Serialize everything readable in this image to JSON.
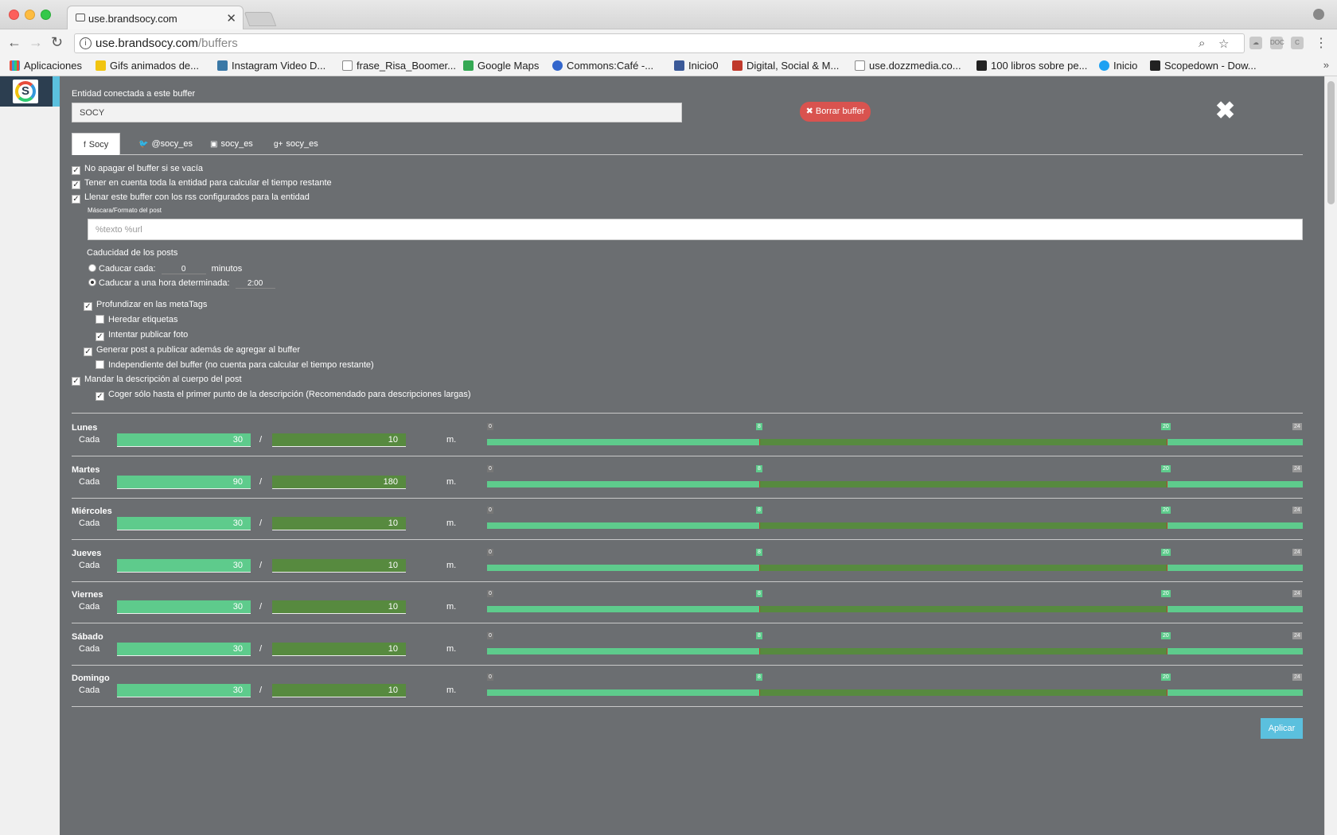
{
  "browser": {
    "tab_title": "use.brandsocy.com",
    "url_host": "use.brandsocy.com",
    "url_path": "/buffers",
    "bookmarks": [
      "Aplicaciones",
      "Gifs animados de...",
      "Instagram Video D...",
      "frase_Risa_Boomer...",
      "Google Maps",
      "Commons:Café -...",
      "Inicio0",
      "Digital, Social & M...",
      "use.dozzmedia.co...",
      "100 libros sobre pe...",
      "Inicio",
      "Scopedown - Dow..."
    ],
    "bookmarks_more": "»"
  },
  "panel": {
    "entity_label": "Entidad conectada a este buffer",
    "entity_value": "SOCY",
    "delete_button": "✖ Borrar buffer",
    "close_icon": "✖",
    "tabs": [
      {
        "icon": "f",
        "label": "Socy"
      },
      {
        "icon": "🐦",
        "label": "@socy_es"
      },
      {
        "icon": "▣",
        "label": "socy_es"
      },
      {
        "icon": "g+",
        "label": "socy_es"
      }
    ],
    "options": {
      "no_apagar": "No apagar el buffer si se vacía",
      "tener_cuenta": "Tener en cuenta toda la entidad para calcular el tiempo restante",
      "llenar": "Llenar este buffer con los rss configurados para la entidad",
      "mask_label": "Máscara/Formato del post",
      "mask_placeholder": "%texto %url",
      "caducidad_label": "Caducidad de los posts",
      "caducar_cada": "Caducar cada:",
      "caducar_cada_value": "0",
      "minutos": "minutos",
      "caducar_hora": "Caducar a una hora determinada:",
      "caducar_hora_value": "2:00",
      "profundizar": "Profundizar en las metaTags",
      "heredar": "Heredar etiquetas",
      "intentar": "Intentar publicar foto",
      "generar": "Generar post a publicar además de agregar al buffer",
      "independiente": "Independiente del buffer (no cuenta para calcular el tiempo restante)",
      "mandar": "Mandar la descripción al cuerpo del post",
      "coger": "Coger sólo hasta el primer punto de la descripción (Recomendado para descripciones largas)"
    },
    "checks": {
      "no_apagar": true,
      "tener_cuenta": true,
      "llenar": true,
      "profundizar": true,
      "heredar": false,
      "intentar": true,
      "generar": true,
      "independiente": false,
      "mandar": true,
      "coger": true
    },
    "cada_label": "Cada",
    "slash": "/",
    "unit": "m.",
    "ticks": [
      "0",
      "8",
      "20",
      "24"
    ],
    "days": [
      {
        "name": "Lunes",
        "v1": "30",
        "v2": "10"
      },
      {
        "name": "Martes",
        "v1": "90",
        "v2": "180"
      },
      {
        "name": "Miércoles",
        "v1": "30",
        "v2": "10"
      },
      {
        "name": "Jueves",
        "v1": "30",
        "v2": "10"
      },
      {
        "name": "Viernes",
        "v1": "30",
        "v2": "10"
      },
      {
        "name": "Sábado",
        "v1": "30",
        "v2": "10"
      },
      {
        "name": "Domingo",
        "v1": "30",
        "v2": "10"
      }
    ],
    "schedule_hours": {
      "start": 8,
      "end": 20,
      "max": 24
    },
    "apply_button": "Aplicar"
  },
  "colors": {
    "panel_bg": "#6b6e71",
    "green_light": "#5ecb8c",
    "green_dark": "#578a3f",
    "danger": "#d9534f",
    "accent": "#5bc0de"
  }
}
